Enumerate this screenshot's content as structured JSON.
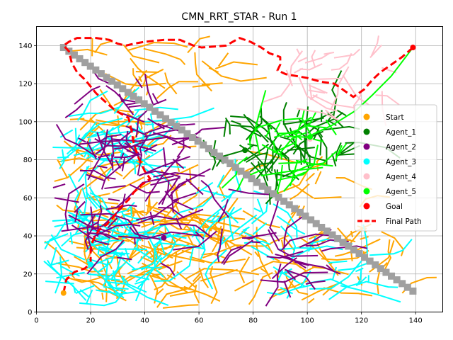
{
  "chart_data": {
    "type": "line",
    "title": "CMN_RRT_STAR - Run 1",
    "xlabel": "",
    "ylabel": "",
    "xlim": [
      0,
      150
    ],
    "ylim": [
      0,
      150
    ],
    "xticks": [
      0,
      20,
      40,
      60,
      80,
      100,
      120,
      140
    ],
    "yticks": [
      0,
      20,
      40,
      60,
      80,
      100,
      120,
      140
    ],
    "grid": true,
    "legend_position": "right",
    "colors": {
      "Start": "#ffa500",
      "Agent_1": "#008000",
      "Agent_2": "#800080",
      "Agent_3": "#00ffff",
      "Agent_4": "#ffc0cb",
      "Agent_5": "#00ff00",
      "Goal": "#ff0000",
      "Final Path": "#ff0000",
      "Obstacle": "#a0a0a0"
    },
    "legend": [
      {
        "label": "Start",
        "kind": "dot",
        "color": "#ffa500"
      },
      {
        "label": "Agent_1",
        "kind": "dot",
        "color": "#008000"
      },
      {
        "label": "Agent_2",
        "kind": "dot",
        "color": "#800080"
      },
      {
        "label": "Agent_3",
        "kind": "dot",
        "color": "#00ffff"
      },
      {
        "label": "Agent_4",
        "kind": "dot",
        "color": "#ffc0cb"
      },
      {
        "label": "Agent_5",
        "kind": "dot",
        "color": "#00ff00"
      },
      {
        "label": "Goal",
        "kind": "dot",
        "color": "#ff0000"
      },
      {
        "label": "Final Path",
        "kind": "dashed-line",
        "color": "#ff0000"
      }
    ],
    "start": [
      10,
      10
    ],
    "goal": [
      139,
      139
    ],
    "agent_centers": {
      "Agent_1": [
        77,
        85
      ],
      "Agent_2": [
        47,
        39
      ],
      "Agent_3": [
        20,
        25
      ],
      "Agent_4": [
        101,
        91
      ],
      "Agent_5": [
        101,
        92
      ]
    },
    "obstacle_diagonal": {
      "from": [
        10,
        139
      ],
      "to": [
        139,
        11
      ],
      "count": 66
    },
    "final_path": [
      [
        10,
        10
      ],
      [
        11,
        17
      ],
      [
        14,
        21
      ],
      [
        18,
        23
      ],
      [
        20,
        26
      ],
      [
        20,
        30
      ],
      [
        20,
        33
      ],
      [
        21,
        38
      ],
      [
        23,
        43
      ],
      [
        26,
        46
      ],
      [
        29,
        51
      ],
      [
        31,
        55
      ],
      [
        34,
        59
      ],
      [
        36,
        63
      ],
      [
        39,
        67
      ],
      [
        42,
        70
      ],
      [
        40,
        74
      ],
      [
        38,
        80
      ],
      [
        36,
        88
      ],
      [
        35,
        96
      ],
      [
        34,
        102
      ],
      [
        29,
        106
      ],
      [
        25,
        111
      ],
      [
        22,
        115
      ],
      [
        18,
        122
      ],
      [
        15,
        126
      ],
      [
        13,
        131
      ],
      [
        12,
        137
      ],
      [
        10,
        140
      ],
      [
        12,
        142
      ],
      [
        15,
        144
      ],
      [
        22,
        144
      ],
      [
        27,
        143
      ],
      [
        30,
        141
      ],
      [
        33,
        140
      ],
      [
        36,
        141
      ],
      [
        40,
        142
      ],
      [
        47,
        143
      ],
      [
        53,
        143
      ],
      [
        58,
        140
      ],
      [
        61,
        139
      ],
      [
        70,
        140
      ],
      [
        75,
        144
      ],
      [
        79,
        142
      ],
      [
        83,
        139
      ],
      [
        86,
        136
      ],
      [
        90,
        134
      ],
      [
        90,
        130
      ],
      [
        89,
        127
      ],
      [
        92,
        125
      ],
      [
        100,
        123
      ],
      [
        105,
        121
      ],
      [
        110,
        120
      ],
      [
        114,
        116
      ],
      [
        117,
        113
      ],
      [
        121,
        117
      ],
      [
        124,
        122
      ],
      [
        127,
        126
      ],
      [
        131,
        130
      ],
      [
        135,
        134
      ],
      [
        139,
        139
      ]
    ]
  }
}
